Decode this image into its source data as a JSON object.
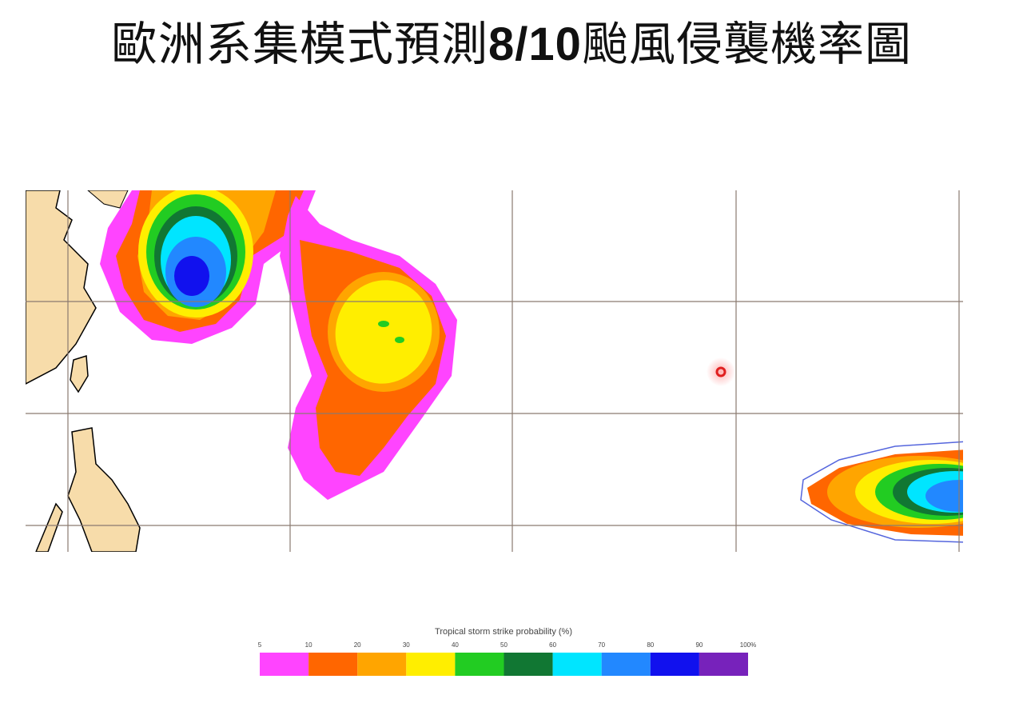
{
  "title": {
    "before": "歐洲系集模式預測",
    "date": "8/10",
    "after": "颱風侵襲機率圖"
  },
  "legend": {
    "title": "Tropical storm strike probability (%)",
    "ticks": [
      "5",
      "10",
      "20",
      "30",
      "40",
      "50",
      "60",
      "70",
      "80",
      "90",
      "100%"
    ],
    "colors": [
      "#ff44ff",
      "#ff6600",
      "#ffa500",
      "#ffee00",
      "#22cc22",
      "#117733",
      "#00e5ff",
      "#2288ff",
      "#1111ee",
      "#7722bb"
    ]
  }
}
